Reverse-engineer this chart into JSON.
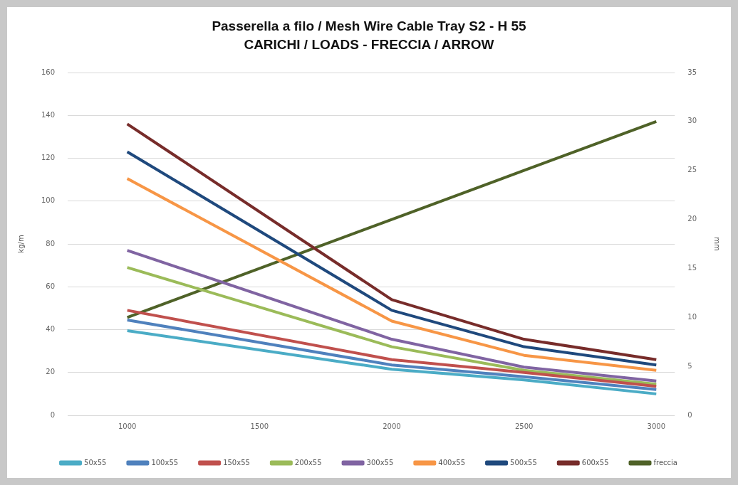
{
  "chart_data": {
    "type": "line",
    "title": "Passerella a filo / Mesh Wire Cable Tray S2 - H 55",
    "subtitle": "CARICHI / LOADS - FRECCIA / ARROW",
    "ylabel": "kg/m",
    "y2label": "mm",
    "x": [
      1000,
      2000,
      2500,
      3000
    ],
    "xlim": [
      775,
      3070
    ],
    "xticks": [
      1000,
      1500,
      2000,
      2500,
      3000
    ],
    "ylim": [
      0,
      160
    ],
    "yticks": [
      0,
      20,
      40,
      60,
      80,
      100,
      120,
      140,
      160
    ],
    "y2lim": [
      0,
      35
    ],
    "y2ticks": [
      0,
      5,
      10,
      15,
      20,
      25,
      30,
      35
    ],
    "grid": "y",
    "legend": "bottom",
    "marker": "none",
    "line_style": "solid",
    "series": [
      {
        "name": "50x55",
        "color": "#4bacc6",
        "values": [
          39.5,
          21.5,
          16.5,
          10
        ]
      },
      {
        "name": "100x55",
        "color": "#4f81bd",
        "values": [
          44.5,
          23.5,
          18,
          12
        ]
      },
      {
        "name": "150x55",
        "color": "#c0504d",
        "values": [
          49,
          26,
          20,
          13.5
        ]
      },
      {
        "name": "200x55",
        "color": "#9bbb59",
        "values": [
          69,
          32,
          21,
          14.5
        ]
      },
      {
        "name": "300x55",
        "color": "#8064a2",
        "values": [
          77,
          35.5,
          22.5,
          16
        ]
      },
      {
        "name": "400x55",
        "color": "#f79646",
        "values": [
          110.5,
          44,
          28,
          21
        ]
      },
      {
        "name": "500x55",
        "color": "#1f497d",
        "values": [
          123,
          49,
          32,
          23.5
        ]
      },
      {
        "name": "600x55",
        "color": "#772c2a",
        "values": [
          136,
          54,
          35.5,
          26
        ]
      },
      {
        "name": "freccia",
        "color": "#4f6228",
        "axis": "y2",
        "values": [
          10,
          20,
          25,
          30
        ]
      }
    ]
  }
}
